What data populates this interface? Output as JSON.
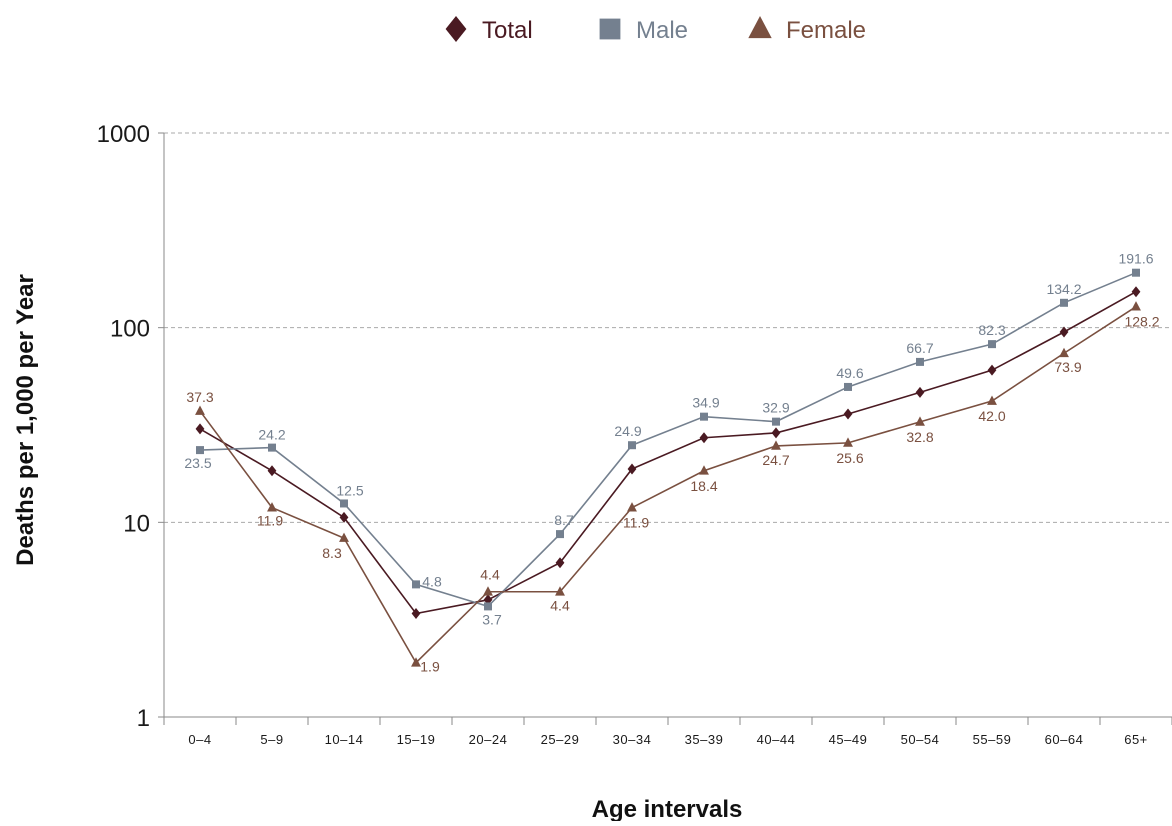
{
  "chart_data": {
    "type": "line",
    "title": "",
    "xlabel": "Age intervals",
    "ylabel": "Deaths per 1,000 per Year",
    "yscale": "log",
    "ylim": [
      1,
      1000
    ],
    "yticks": [
      "1",
      "10",
      "100",
      "1000"
    ],
    "grid": "horizontal dashed",
    "legend_position": "top-center",
    "categories": [
      "0–4",
      "5–9",
      "10–14",
      "15–19",
      "20–24",
      "25–29",
      "30–34",
      "35–39",
      "40–44",
      "45–49",
      "50–54",
      "55–59",
      "60–64",
      "65+"
    ],
    "series": [
      {
        "name": "Total",
        "marker": "diamond",
        "color": "#4a1a22",
        "values": [
          30.2,
          18.4,
          10.6,
          3.4,
          4.0,
          6.2,
          18.8,
          27.2,
          28.8,
          36.0,
          46.5,
          60.5,
          95.0,
          153.0
        ],
        "labels": [
          "",
          "",
          "",
          "",
          "",
          "",
          "",
          "",
          "",
          "",
          "",
          "",
          "",
          ""
        ]
      },
      {
        "name": "Male",
        "marker": "square",
        "color": "#74808f",
        "values": [
          23.5,
          24.2,
          12.5,
          4.8,
          3.7,
          8.7,
          24.9,
          34.9,
          32.9,
          49.6,
          66.7,
          82.3,
          134.2,
          191.6
        ],
        "labels": [
          "23.5",
          "24.2",
          "12.5",
          "4.8",
          "3.7",
          "8.7",
          "24.9",
          "34.9",
          "32.9",
          "49.6",
          "66.7",
          "82.3",
          "134.2",
          "191.6"
        ]
      },
      {
        "name": "Female",
        "marker": "triangle",
        "color": "#7a5040",
        "values": [
          37.3,
          11.9,
          8.3,
          1.9,
          4.4,
          4.4,
          11.9,
          18.4,
          24.7,
          25.6,
          32.8,
          42.0,
          73.9,
          128.2
        ],
        "labels": [
          "37.3",
          "11.9",
          "8.3",
          "1.9",
          "4.4",
          "4.4",
          "11.9",
          "18.4",
          "24.7",
          "25.6",
          "32.8",
          "42.0",
          "73.9",
          "128.2"
        ]
      }
    ]
  }
}
